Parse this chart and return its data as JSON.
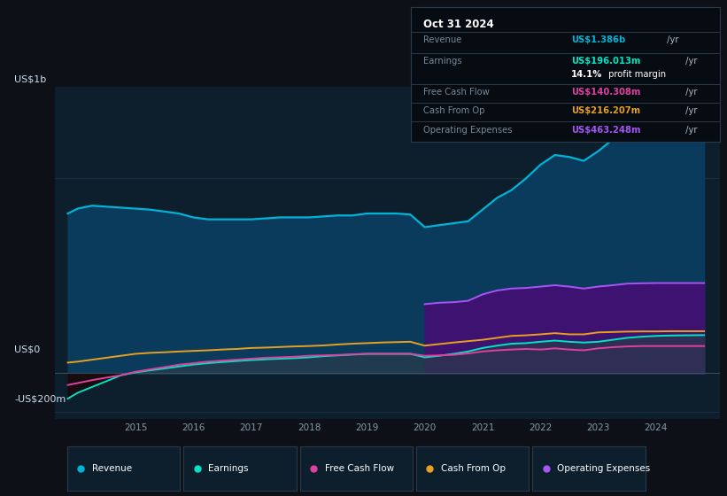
{
  "background_color": "#0d1117",
  "plot_bg_color": "#0d1f2d",
  "ylabel_top": "US$1b",
  "ylabel_zero": "US$0",
  "ylabel_bottom": "-US$200m",
  "x_years": [
    2013.83,
    2014.0,
    2014.25,
    2014.5,
    2014.75,
    2015.0,
    2015.25,
    2015.5,
    2015.75,
    2016.0,
    2016.25,
    2016.5,
    2016.75,
    2017.0,
    2017.25,
    2017.5,
    2017.75,
    2018.0,
    2018.25,
    2018.5,
    2018.75,
    2019.0,
    2019.25,
    2019.5,
    2019.75,
    2020.0,
    2020.25,
    2020.5,
    2020.75,
    2021.0,
    2021.25,
    2021.5,
    2021.75,
    2022.0,
    2022.25,
    2022.5,
    2022.75,
    2023.0,
    2023.25,
    2023.5,
    2023.75,
    2024.0,
    2024.25,
    2024.5,
    2024.83
  ],
  "revenue": [
    0.82,
    0.845,
    0.86,
    0.855,
    0.85,
    0.845,
    0.84,
    0.83,
    0.82,
    0.8,
    0.79,
    0.79,
    0.79,
    0.79,
    0.795,
    0.8,
    0.8,
    0.8,
    0.805,
    0.81,
    0.81,
    0.82,
    0.82,
    0.82,
    0.815,
    0.75,
    0.76,
    0.77,
    0.78,
    0.84,
    0.9,
    0.94,
    1.0,
    1.07,
    1.12,
    1.11,
    1.09,
    1.14,
    1.2,
    1.24,
    1.28,
    1.32,
    1.35,
    1.37,
    1.386
  ],
  "earnings": [
    -0.13,
    -0.1,
    -0.07,
    -0.04,
    -0.01,
    0.005,
    0.015,
    0.025,
    0.035,
    0.045,
    0.052,
    0.058,
    0.063,
    0.068,
    0.072,
    0.075,
    0.078,
    0.082,
    0.088,
    0.092,
    0.096,
    0.1,
    0.1,
    0.1,
    0.1,
    0.082,
    0.09,
    0.1,
    0.112,
    0.13,
    0.142,
    0.152,
    0.155,
    0.162,
    0.168,
    0.162,
    0.158,
    0.162,
    0.172,
    0.182,
    0.188,
    0.192,
    0.194,
    0.195,
    0.196
  ],
  "free_cash_flow": [
    -0.06,
    -0.05,
    -0.035,
    -0.022,
    -0.01,
    0.008,
    0.02,
    0.032,
    0.044,
    0.052,
    0.06,
    0.065,
    0.07,
    0.075,
    0.08,
    0.082,
    0.085,
    0.09,
    0.092,
    0.094,
    0.098,
    0.1,
    0.1,
    0.1,
    0.1,
    0.09,
    0.092,
    0.095,
    0.102,
    0.112,
    0.118,
    0.122,
    0.125,
    0.122,
    0.128,
    0.122,
    0.118,
    0.128,
    0.134,
    0.138,
    0.14,
    0.14,
    0.14,
    0.14,
    0.14
  ],
  "cash_from_op": [
    0.055,
    0.06,
    0.07,
    0.08,
    0.09,
    0.1,
    0.105,
    0.108,
    0.112,
    0.115,
    0.118,
    0.122,
    0.125,
    0.13,
    0.132,
    0.135,
    0.138,
    0.14,
    0.143,
    0.148,
    0.152,
    0.155,
    0.158,
    0.16,
    0.162,
    0.142,
    0.15,
    0.158,
    0.165,
    0.172,
    0.182,
    0.192,
    0.195,
    0.2,
    0.206,
    0.2,
    0.2,
    0.21,
    0.212,
    0.214,
    0.215,
    0.215,
    0.216,
    0.216,
    0.216
  ],
  "op_expenses": [
    0.0,
    0.0,
    0.0,
    0.0,
    0.0,
    0.0,
    0.0,
    0.0,
    0.0,
    0.0,
    0.0,
    0.0,
    0.0,
    0.0,
    0.0,
    0.0,
    0.0,
    0.0,
    0.0,
    0.0,
    0.0,
    0.0,
    0.0,
    0.0,
    0.0,
    0.355,
    0.362,
    0.365,
    0.372,
    0.405,
    0.425,
    0.435,
    0.438,
    0.445,
    0.452,
    0.445,
    0.435,
    0.445,
    0.452,
    0.46,
    0.462,
    0.463,
    0.463,
    0.463,
    0.463
  ],
  "revenue_color": "#00b4d8",
  "earnings_color": "#00e5c3",
  "free_cash_flow_color": "#e040a0",
  "cash_from_op_color": "#e8a020",
  "op_expenses_color": "#a855f7",
  "revenue_fill_color": "#0a3a5c",
  "op_expenses_fill_color": "#3d1270",
  "grid_color": "#1e2e3e",
  "xlim": [
    2013.6,
    2025.1
  ],
  "ylim": [
    -0.235,
    1.47
  ],
  "ytick_positions": [
    -0.2,
    0.0,
    1.0
  ],
  "xtick_years": [
    2015,
    2016,
    2017,
    2018,
    2019,
    2020,
    2021,
    2022,
    2023,
    2024
  ],
  "info_box": {
    "date": "Oct 31 2024",
    "revenue_label": "Revenue",
    "revenue_value": "US$1.386b",
    "revenue_suffix": " /yr",
    "earnings_label": "Earnings",
    "earnings_value": "US$196.013m",
    "earnings_suffix": " /yr",
    "margin_bold": "14.1%",
    "margin_rest": " profit margin",
    "fcf_label": "Free Cash Flow",
    "fcf_value": "US$140.308m",
    "fcf_suffix": " /yr",
    "cfo_label": "Cash From Op",
    "cfo_value": "US$216.207m",
    "cfo_suffix": " /yr",
    "opex_label": "Operating Expenses",
    "opex_value": "US$463.248m",
    "opex_suffix": " /yr"
  },
  "legend_items": [
    {
      "label": "Revenue",
      "color": "#00b4d8"
    },
    {
      "label": "Earnings",
      "color": "#00e5c3"
    },
    {
      "label": "Free Cash Flow",
      "color": "#e040a0"
    },
    {
      "label": "Cash From Op",
      "color": "#e8a020"
    },
    {
      "label": "Operating Expenses",
      "color": "#a855f7"
    }
  ]
}
